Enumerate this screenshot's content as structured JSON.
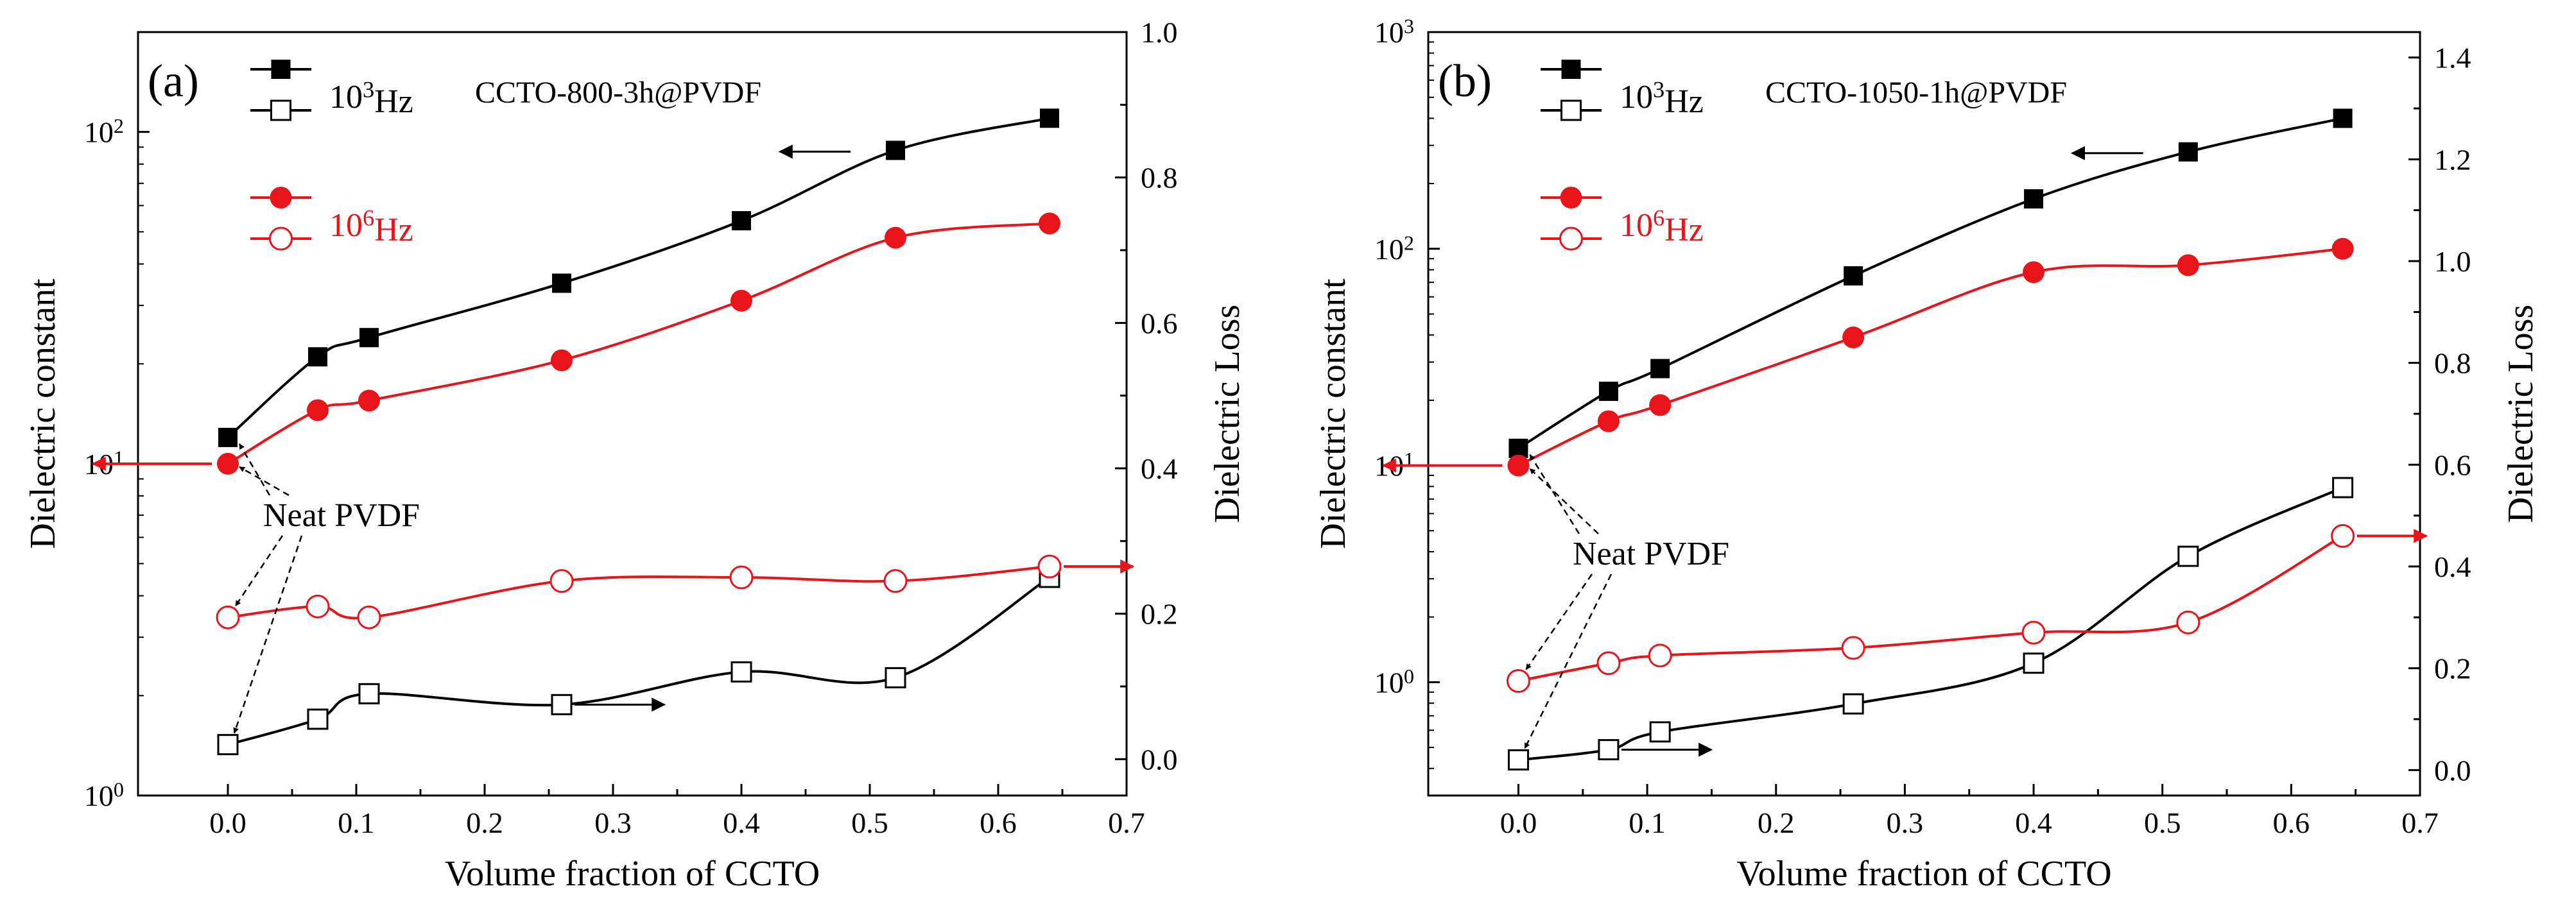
{
  "colors": {
    "black": "#000000",
    "red": "#e8141a"
  },
  "annotation_text": "Neat PVDF",
  "chart_data": [
    {
      "type": "line",
      "panel_label": "(a)",
      "sample": "CCTO-800-3h@PVDF",
      "xlabel": "Volume fraction of CCTO",
      "ylabel_left": "Dielectric constant",
      "ylabel_right": "Dielectric Loss",
      "xlim": [
        -0.07,
        0.7
      ],
      "ylim_left": [
        1,
        200
      ],
      "ylim_right": [
        -0.05,
        1.0
      ],
      "x_ticks": [
        "0.0",
        "0.1",
        "0.2",
        "0.3",
        "0.4",
        "0.5",
        "0.6",
        "0.7"
      ],
      "left_ticks": [
        {
          "base": "10",
          "exp": "0"
        },
        {
          "base": "10",
          "exp": "1"
        },
        {
          "base": "10",
          "exp": "2"
        }
      ],
      "right_ticks": [
        "0.0",
        "0.2",
        "0.4",
        "0.6",
        "0.8",
        "1.0"
      ],
      "legend": [
        {
          "base": "10",
          "exp": "3",
          "unit": "Hz",
          "color": "black"
        },
        {
          "base": "10",
          "exp": "6",
          "unit": "Hz",
          "color": "red"
        }
      ],
      "x": [
        0.0,
        0.07,
        0.11,
        0.26,
        0.4,
        0.52,
        0.64
      ],
      "series": [
        {
          "name": "10^3 Hz dielectric constant",
          "axis": "left",
          "marker": "filled-square",
          "color": "black",
          "values": [
            12,
            21,
            24,
            35,
            54,
            88,
            110
          ]
        },
        {
          "name": "10^6 Hz dielectric constant",
          "axis": "left",
          "marker": "filled-circle",
          "color": "red",
          "values": [
            10,
            14.5,
            15.5,
            20.5,
            31,
            48,
            53
          ]
        },
        {
          "name": "10^3 Hz dielectric loss",
          "axis": "right",
          "marker": "open-square",
          "color": "black",
          "values": [
            0.02,
            0.055,
            0.09,
            0.075,
            0.12,
            0.112,
            0.25
          ]
        },
        {
          "name": "10^6 Hz dielectric loss",
          "axis": "right",
          "marker": "open-circle",
          "color": "red",
          "values": [
            0.195,
            0.21,
            0.195,
            0.245,
            0.25,
            0.245,
            0.265
          ]
        }
      ]
    },
    {
      "type": "line",
      "panel_label": "(b)",
      "sample": "CCTO-1050-1h@PVDF",
      "xlabel": "Volume fraction of CCTO",
      "ylabel_left": "Dielectric constant",
      "ylabel_right": "Dielectric Loss",
      "xlim": [
        -0.07,
        0.7
      ],
      "ylim_left": [
        0.3,
        1000
      ],
      "ylim_right": [
        -0.05,
        1.45
      ],
      "x_ticks": [
        "0.0",
        "0.1",
        "0.2",
        "0.3",
        "0.4",
        "0.5",
        "0.6",
        "0.7"
      ],
      "left_ticks": [
        {
          "base": "10",
          "exp": "0"
        },
        {
          "base": "10",
          "exp": "1"
        },
        {
          "base": "10",
          "exp": "2"
        },
        {
          "base": "10",
          "exp": "3"
        }
      ],
      "right_ticks": [
        "0.0",
        "0.2",
        "0.4",
        "0.6",
        "0.8",
        "1.0",
        "1.2",
        "1.4"
      ],
      "legend": [
        {
          "base": "10",
          "exp": "3",
          "unit": "Hz",
          "color": "black"
        },
        {
          "base": "10",
          "exp": "6",
          "unit": "Hz",
          "color": "red"
        }
      ],
      "x": [
        0.0,
        0.07,
        0.11,
        0.26,
        0.4,
        0.52,
        0.64
      ],
      "series": [
        {
          "name": "10^3 Hz dielectric constant",
          "axis": "left",
          "marker": "filled-square",
          "color": "black",
          "values": [
            12,
            22,
            28,
            75,
            170,
            280,
            400
          ]
        },
        {
          "name": "10^6 Hz dielectric constant",
          "axis": "left",
          "marker": "filled-circle",
          "color": "red",
          "values": [
            10,
            16,
            19,
            39,
            78,
            84,
            100
          ]
        },
        {
          "name": "10^3 Hz dielectric loss",
          "axis": "right",
          "marker": "open-square",
          "color": "black",
          "values": [
            0.02,
            0.04,
            0.075,
            0.13,
            0.21,
            0.42,
            0.555
          ]
        },
        {
          "name": "10^6 Hz dielectric loss",
          "axis": "right",
          "marker": "open-circle",
          "color": "red",
          "values": [
            0.175,
            0.21,
            0.225,
            0.24,
            0.27,
            0.29,
            0.46
          ]
        }
      ]
    }
  ]
}
